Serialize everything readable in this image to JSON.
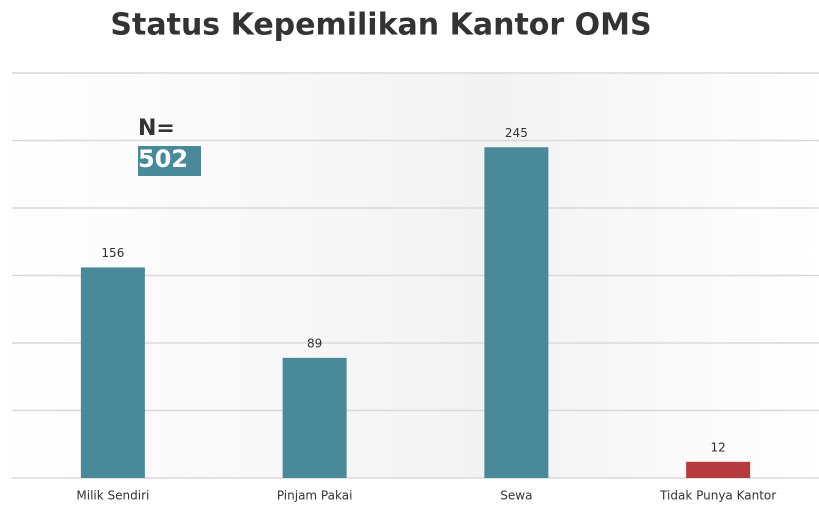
{
  "chart_data": {
    "type": "bar",
    "title": "Status Kepemilikan Kantor OMS",
    "annotation": [
      "N=",
      "502"
    ],
    "categories": [
      "Milik Sendiri",
      "Pinjam Pakai",
      "Sewa",
      "Tidak Punya Kantor"
    ],
    "values": [
      156,
      89,
      245,
      12
    ],
    "colors": [
      "#4a8999",
      "#4a8999",
      "#4a8999",
      "#b73a3f"
    ],
    "ylim": [
      0,
      300
    ],
    "yticks": [
      0,
      50,
      100,
      150,
      200,
      250,
      300
    ],
    "grid": true
  }
}
